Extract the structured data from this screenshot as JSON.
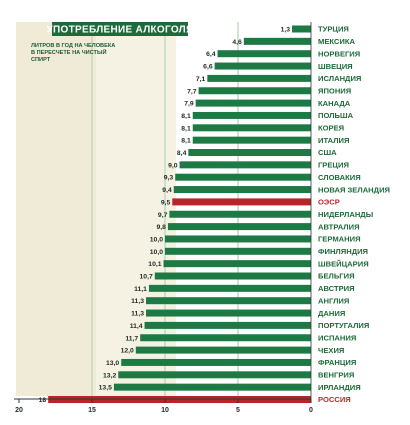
{
  "chart_data": {
    "type": "bar",
    "orientation": "horizontal",
    "title": "УПОТРЕБЛЕНИЕ АЛКОГОЛЯ",
    "subtitle_lines": [
      "ЛИТРОВ В ГОД НА ЧЕЛОВЕКА",
      "В ПЕРЕСЧЕТЕ НА ЧИСТЫЙ",
      "СПИРТ"
    ],
    "xlim": [
      20,
      0
    ],
    "xticks": [
      "20",
      "15",
      "10",
      "5",
      "0"
    ],
    "grid": false,
    "bar_color": "#1e7a45",
    "highlight_color": "#b8242a",
    "data": [
      {
        "label": "ТУРЦИЯ",
        "value": 1.3,
        "value_label": "1,3"
      },
      {
        "label": "МЕКСИКА",
        "value": 4.6,
        "value_label": "4,6"
      },
      {
        "label": "НОРВЕГИЯ",
        "value": 6.4,
        "value_label": "6,4"
      },
      {
        "label": "ШВЕЦИЯ",
        "value": 6.6,
        "value_label": "6,6"
      },
      {
        "label": "ИСЛАНДИЯ",
        "value": 7.1,
        "value_label": "7,1"
      },
      {
        "label": "ЯПОНИЯ",
        "value": 7.7,
        "value_label": "7,7"
      },
      {
        "label": "КАНАДА",
        "value": 7.9,
        "value_label": "7,9"
      },
      {
        "label": "ПОЛЬША",
        "value": 8.1,
        "value_label": "8,1"
      },
      {
        "label": "КОРЕЯ",
        "value": 8.1,
        "value_label": "8,1"
      },
      {
        "label": "ИТАЛИЯ",
        "value": 8.1,
        "value_label": "8,1"
      },
      {
        "label": "США",
        "value": 8.4,
        "value_label": "8,4"
      },
      {
        "label": "ГРЕЦИЯ",
        "value": 9.0,
        "value_label": "9,0"
      },
      {
        "label": "СЛОВАКИЯ",
        "value": 9.3,
        "value_label": "9,3"
      },
      {
        "label": "НОВАЯ ЗЕЛАНДИЯ",
        "value": 9.4,
        "value_label": "9,4"
      },
      {
        "label": "ОЭСР",
        "value": 9.5,
        "value_label": "9,5",
        "highlight": true
      },
      {
        "label": "НИДЕРЛАНДЫ",
        "value": 9.7,
        "value_label": "9,7"
      },
      {
        "label": "АВТРАЛИЯ",
        "value": 9.8,
        "value_label": "9,8"
      },
      {
        "label": "ГЕРМАНИЯ",
        "value": 10.0,
        "value_label": "10,0"
      },
      {
        "label": "ФИНЛЯНДИЯ",
        "value": 10.0,
        "value_label": "10,0"
      },
      {
        "label": "ШВЕЙЦАРИЯ",
        "value": 10.1,
        "value_label": "10,1"
      },
      {
        "label": "БЕЛЬГИЯ",
        "value": 10.7,
        "value_label": "10,7"
      },
      {
        "label": "АВСТРИЯ",
        "value": 11.1,
        "value_label": "11,1"
      },
      {
        "label": "АНГЛИЯ",
        "value": 11.3,
        "value_label": "11,3"
      },
      {
        "label": "ДАНИЯ",
        "value": 11.3,
        "value_label": "11,3"
      },
      {
        "label": "ПОРТУГАЛИЯ",
        "value": 11.4,
        "value_label": "11,4"
      },
      {
        "label": "ИСПАНИЯ",
        "value": 11.7,
        "value_label": "11,7"
      },
      {
        "label": "ЧЕХИЯ",
        "value": 12.0,
        "value_label": "12,0"
      },
      {
        "label": "ФРАНЦИЯ",
        "value": 13.0,
        "value_label": "13,0"
      },
      {
        "label": "ВЕНГРИЯ",
        "value": 13.2,
        "value_label": "13,2"
      },
      {
        "label": "ИРЛАНДИЯ",
        "value": 13.5,
        "value_label": "13,5"
      },
      {
        "label": "РОССИЯ",
        "value": 18,
        "value_label": "18",
        "highlight": true
      }
    ]
  }
}
